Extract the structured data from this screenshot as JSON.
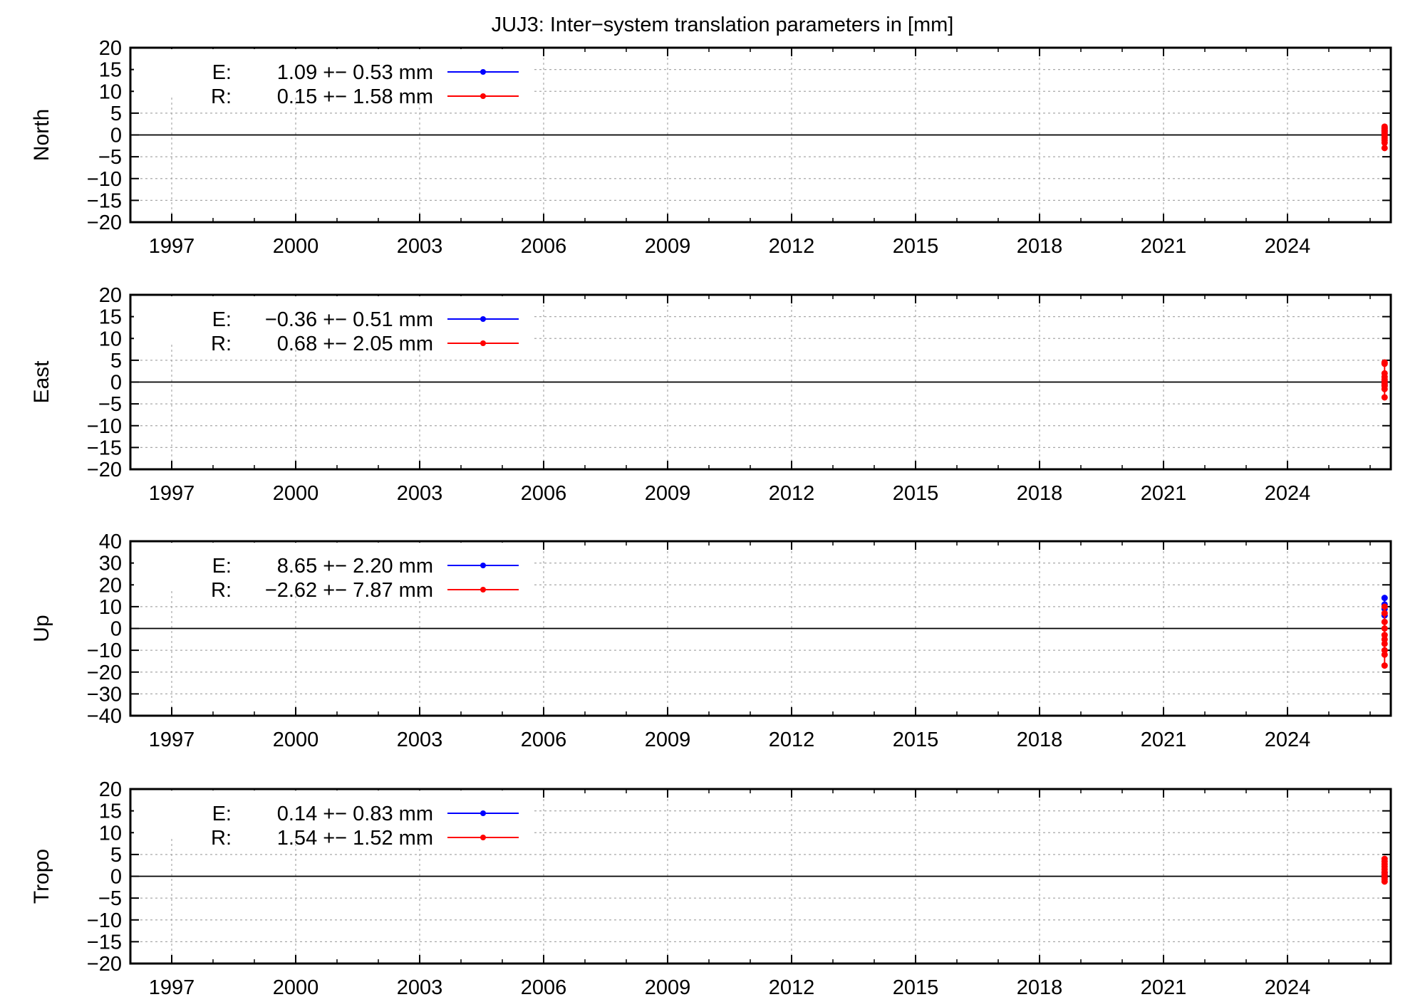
{
  "chart_data": [
    {
      "type": "scatter",
      "title": "JUJ3: Inter−system translation parameters in [mm]",
      "ylabel": "North",
      "xlim": [
        1996.0,
        2026.5
      ],
      "ylim": [
        -20,
        20
      ],
      "x_ticks": [
        1997,
        2000,
        2003,
        2006,
        2009,
        2012,
        2015,
        2018,
        2021,
        2024
      ],
      "y_ticks": [
        -20,
        -15,
        -10,
        -5,
        0,
        5,
        10,
        15,
        20
      ],
      "grid": true,
      "legend_position": "top-left",
      "series": [
        {
          "name": "E:",
          "stats": "1.09 +− 0.53 mm",
          "color": "#0000ff",
          "x": [
            2026.35,
            2026.35,
            2026.35
          ],
          "y": [
            1.6,
            1.0,
            0.6
          ]
        },
        {
          "name": "R:",
          "stats": "0.15 +− 1.58 mm",
          "color": "#ff0000",
          "x": [
            2026.35,
            2026.35,
            2026.35,
            2026.35,
            2026.35,
            2026.35,
            2026.35,
            2026.35,
            2026.35,
            2026.35
          ],
          "y": [
            1.9,
            1.5,
            1.2,
            0.8,
            0.3,
            -0.2,
            -0.7,
            -1.2,
            -1.8,
            -3.0
          ]
        }
      ]
    },
    {
      "type": "scatter",
      "title": "",
      "ylabel": "East",
      "xlim": [
        1996.0,
        2026.5
      ],
      "ylim": [
        -20,
        20
      ],
      "x_ticks": [
        1997,
        2000,
        2003,
        2006,
        2009,
        2012,
        2015,
        2018,
        2021,
        2024
      ],
      "y_ticks": [
        -20,
        -15,
        -10,
        -5,
        0,
        5,
        10,
        15,
        20
      ],
      "grid": true,
      "legend_position": "top-left",
      "series": [
        {
          "name": "E:",
          "stats": "−0.36 +− 0.51 mm",
          "color": "#0000ff",
          "x": [
            2026.35,
            2026.35,
            2026.35
          ],
          "y": [
            0.2,
            -0.4,
            -0.8
          ]
        },
        {
          "name": "R:",
          "stats": "0.68 +− 2.05 mm",
          "color": "#ff0000",
          "x": [
            2026.35,
            2026.35,
            2026.35,
            2026.35,
            2026.35,
            2026.35,
            2026.35,
            2026.35,
            2026.35,
            2026.35
          ],
          "y": [
            4.5,
            4.2,
            2.0,
            1.2,
            0.6,
            0.1,
            -0.4,
            -0.9,
            -1.6,
            -3.5
          ]
        }
      ]
    },
    {
      "type": "scatter",
      "title": "",
      "ylabel": "Up",
      "xlim": [
        1996.0,
        2026.5
      ],
      "ylim": [
        -40,
        40
      ],
      "x_ticks": [
        1997,
        2000,
        2003,
        2006,
        2009,
        2012,
        2015,
        2018,
        2021,
        2024
      ],
      "y_ticks": [
        -40,
        -30,
        -20,
        -10,
        0,
        10,
        20,
        30,
        40
      ],
      "grid": true,
      "legend_position": "top-left",
      "series": [
        {
          "name": "E:",
          "stats": "8.65 +− 2.20 mm",
          "color": "#0000ff",
          "x": [
            2026.35,
            2026.35,
            2026.35,
            2026.35
          ],
          "y": [
            14,
            11,
            9,
            6
          ]
        },
        {
          "name": "R:",
          "stats": "−2.62 +− 7.87 mm",
          "color": "#ff0000",
          "x": [
            2026.35,
            2026.35,
            2026.35,
            2026.35,
            2026.35,
            2026.35,
            2026.35,
            2026.35,
            2026.35,
            2026.35
          ],
          "y": [
            10,
            7,
            3,
            0,
            -3,
            -5,
            -7,
            -10,
            -12,
            -17
          ]
        }
      ]
    },
    {
      "type": "scatter",
      "title": "",
      "ylabel": "Tropo",
      "xlim": [
        1996.0,
        2026.5
      ],
      "ylim": [
        -20,
        20
      ],
      "x_ticks": [
        1997,
        2000,
        2003,
        2006,
        2009,
        2012,
        2015,
        2018,
        2021,
        2024
      ],
      "y_ticks": [
        -20,
        -15,
        -10,
        -5,
        0,
        5,
        10,
        15,
        20
      ],
      "grid": true,
      "legend_position": "top-left",
      "series": [
        {
          "name": "E:",
          "stats": "0.14 +− 0.83 mm",
          "color": "#0000ff",
          "x": [
            2026.35,
            2026.35,
            2026.35
          ],
          "y": [
            0.8,
            0.2,
            -0.3
          ]
        },
        {
          "name": "R:",
          "stats": "1.54 +− 1.52 mm",
          "color": "#ff0000",
          "x": [
            2026.35,
            2026.35,
            2026.35,
            2026.35,
            2026.35,
            2026.35,
            2026.35,
            2026.35,
            2026.35,
            2026.35
          ],
          "y": [
            4.0,
            3.4,
            2.8,
            2.2,
            1.6,
            1.0,
            0.4,
            -0.2,
            -0.7,
            -1.2
          ]
        }
      ]
    }
  ]
}
